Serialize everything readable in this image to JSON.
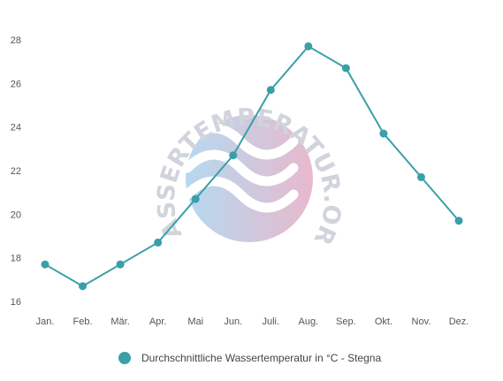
{
  "chart_data": {
    "type": "line",
    "categories": [
      "Jan.",
      "Feb.",
      "Mär.",
      "Apr.",
      "Mai",
      "Jun.",
      "Juli.",
      "Aug.",
      "Sep.",
      "Okt.",
      "Nov.",
      "Dez."
    ],
    "series": [
      {
        "name": "Durchschnittliche Wassertemperatur in °C - Stegna",
        "values": [
          17.7,
          16.7,
          17.7,
          18.7,
          20.7,
          22.7,
          25.7,
          27.7,
          26.7,
          23.7,
          21.7,
          19.7
        ],
        "color": "#3a9fa8"
      }
    ],
    "ylim": [
      16,
      28
    ],
    "yticks": [
      16,
      18,
      20,
      22,
      24,
      26,
      28
    ],
    "xlabel": "",
    "ylabel": "",
    "grid": false,
    "legend": "bottom-center"
  },
  "watermark": {
    "text": "WASSERTEMPERATUR.ORG",
    "colors": [
      "#a9d3ee",
      "#e4adc4"
    ]
  }
}
